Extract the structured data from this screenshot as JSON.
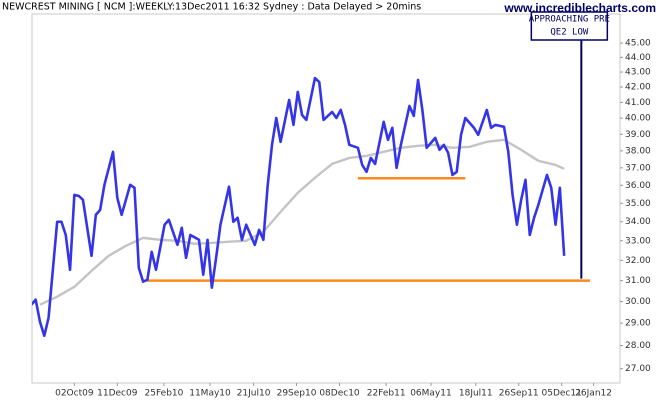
{
  "chart_data": {
    "type": "line",
    "title": "NEWCREST MINING [ NCM ]:WEEKLY:13Dec2011 16:32 Sydney : Data Delayed > 20mins",
    "watermark": "www.incrediblecharts.com",
    "log_scale": true,
    "grid": false,
    "xlim": [
      "2009-07-25",
      "2012-03-09"
    ],
    "xticks": [
      {
        "value": "2009-10-02",
        "label": "02Oct09"
      },
      {
        "value": "2009-12-11",
        "label": "11Dec09"
      },
      {
        "value": "2010-02-25",
        "label": "25Feb10"
      },
      {
        "value": "2010-05-11",
        "label": "11May10"
      },
      {
        "value": "2010-07-21",
        "label": "21Jul10"
      },
      {
        "value": "2010-09-29",
        "label": "29Sep10"
      },
      {
        "value": "2010-12-08",
        "label": "08Dec10"
      },
      {
        "value": "2011-02-22",
        "label": "22Feb11"
      },
      {
        "value": "2011-05-06",
        "label": "06May11"
      },
      {
        "value": "2011-07-18",
        "label": "18Jul11"
      },
      {
        "value": "2011-09-26",
        "label": "26Sep11"
      },
      {
        "value": "2011-12-05",
        "label": "05Dec11"
      },
      {
        "value": "2012-01-26",
        "label": "26Jan12"
      }
    ],
    "ylim": [
      26.4,
      47.1
    ],
    "yticks": [
      {
        "value": 27,
        "label": "27.00"
      },
      {
        "value": 28,
        "label": "28.00"
      },
      {
        "value": 29,
        "label": "29.00"
      },
      {
        "value": 30,
        "label": "30.00"
      },
      {
        "value": 31,
        "label": "31.00"
      },
      {
        "value": 32,
        "label": "32.00"
      },
      {
        "value": 33,
        "label": "33.00"
      },
      {
        "value": 34,
        "label": "34.00"
      },
      {
        "value": 35,
        "label": "35.00"
      },
      {
        "value": 36,
        "label": "36.00"
      },
      {
        "value": 37,
        "label": "37.00"
      },
      {
        "value": 38,
        "label": "38.00"
      },
      {
        "value": 39,
        "label": "39.00"
      },
      {
        "value": 40,
        "label": "40.00"
      },
      {
        "value": 41,
        "label": "41.00"
      },
      {
        "value": 42,
        "label": "42.00"
      },
      {
        "value": 43,
        "label": "43.00"
      },
      {
        "value": 44,
        "label": "44.00"
      },
      {
        "value": 45,
        "label": "45.00"
      }
    ],
    "x": [
      "2009-07-24",
      "2009-07-31",
      "2009-08-07",
      "2009-08-14",
      "2009-08-21",
      "2009-09-04",
      "2009-09-11",
      "2009-09-18",
      "2009-09-25",
      "2009-10-02",
      "2009-10-09",
      "2009-10-16",
      "2009-10-30",
      "2009-11-06",
      "2009-11-13",
      "2009-11-20",
      "2009-12-04",
      "2009-12-11",
      "2009-12-18",
      "2009-12-25",
      "2010-01-01",
      "2010-01-08",
      "2010-01-15",
      "2010-01-22",
      "2010-01-29",
      "2010-02-05",
      "2010-02-12",
      "2010-02-26",
      "2010-03-05",
      "2010-03-19",
      "2010-03-26",
      "2010-04-02",
      "2010-04-09",
      "2010-04-23",
      "2010-04-30",
      "2010-05-07",
      "2010-05-14",
      "2010-05-21",
      "2010-05-28",
      "2010-06-11",
      "2010-06-18",
      "2010-06-25",
      "2010-07-02",
      "2010-07-09",
      "2010-07-23",
      "2010-07-30",
      "2010-08-06",
      "2010-08-13",
      "2010-08-20",
      "2010-08-27",
      "2010-09-03",
      "2010-09-17",
      "2010-09-24",
      "2010-10-01",
      "2010-10-08",
      "2010-10-15",
      "2010-10-29",
      "2010-11-05",
      "2010-11-12",
      "2010-11-26",
      "2010-12-03",
      "2010-12-10",
      "2010-12-17",
      "2010-12-24",
      "2011-01-07",
      "2011-01-14",
      "2011-01-21",
      "2011-01-28",
      "2011-02-04",
      "2011-02-18",
      "2011-02-25",
      "2011-03-04",
      "2011-03-11",
      "2011-03-18",
      "2011-04-01",
      "2011-04-08",
      "2011-04-15",
      "2011-04-22",
      "2011-04-29",
      "2011-05-13",
      "2011-05-20",
      "2011-05-27",
      "2011-06-03",
      "2011-06-10",
      "2011-06-17",
      "2011-06-24",
      "2011-07-01",
      "2011-07-15",
      "2011-07-22",
      "2011-08-05",
      "2011-08-12",
      "2011-08-19",
      "2011-09-02",
      "2011-09-09",
      "2011-09-16",
      "2011-09-23",
      "2011-09-30",
      "2011-10-07",
      "2011-10-14",
      "2011-10-21",
      "2011-10-28",
      "2011-11-11",
      "2011-11-18",
      "2011-11-25",
      "2011-12-02",
      "2011-12-09"
    ],
    "series": [
      {
        "color": "#3535e8",
        "values": [
          29.85,
          30.09,
          29.06,
          28.43,
          29.25,
          34.0,
          34.0,
          33.3,
          31.53,
          35.46,
          35.41,
          35.19,
          32.23,
          34.37,
          34.64,
          36.03,
          37.94,
          35.3,
          34.37,
          35.19,
          36.03,
          35.86,
          31.63,
          30.95,
          31.04,
          32.43,
          31.53,
          33.84,
          34.1,
          32.79,
          33.68,
          32.13,
          33.3,
          33.05,
          31.29,
          33.05,
          30.66,
          32.13,
          33.84,
          35.92,
          34.0,
          34.21,
          33.05,
          33.84,
          32.79,
          33.57,
          33.05,
          36.0,
          38.36,
          40.01,
          38.54,
          41.16,
          39.58,
          41.68,
          40.2,
          39.89,
          42.6,
          42.33,
          39.89,
          40.39,
          40.01,
          40.52,
          39.58,
          38.36,
          38.18,
          37.17,
          36.77,
          37.58,
          37.23,
          39.77,
          38.66,
          39.4,
          37.0,
          38.36,
          40.77,
          40.14,
          42.47,
          40.52,
          38.18,
          38.78,
          38.06,
          38.36,
          37.88,
          36.59,
          36.77,
          38.97,
          40.01,
          39.4,
          38.97,
          40.52,
          39.4,
          39.58,
          39.46,
          37.94,
          35.46,
          33.84,
          35.19,
          36.31,
          33.3,
          34.21,
          34.92,
          36.59,
          35.86,
          33.84,
          35.86,
          32.23
        ]
      },
      {
        "color": "#c4c4c4",
        "x": [
          "2009-08-07",
          "2009-09-04",
          "2009-10-02",
          "2009-10-30",
          "2009-11-27",
          "2009-12-25",
          "2010-01-22",
          "2010-02-19",
          "2010-03-19",
          "2010-04-16",
          "2010-05-14",
          "2010-06-11",
          "2010-07-09",
          "2010-08-06",
          "2010-09-03",
          "2010-10-01",
          "2010-10-29",
          "2010-11-26",
          "2010-12-24",
          "2011-01-21",
          "2011-02-18",
          "2011-03-18",
          "2011-04-15",
          "2011-05-13",
          "2011-06-10",
          "2011-07-08",
          "2011-08-05",
          "2011-09-02",
          "2011-09-30",
          "2011-10-28",
          "2011-11-25",
          "2011-12-09"
        ],
        "values": [
          29.85,
          30.23,
          30.7,
          31.48,
          32.23,
          32.74,
          33.15,
          33.05,
          33.0,
          32.84,
          32.89,
          32.95,
          33.0,
          33.47,
          34.53,
          35.58,
          36.43,
          37.23,
          37.58,
          37.7,
          37.94,
          38.18,
          38.3,
          38.36,
          38.18,
          38.24,
          38.54,
          38.66,
          38.06,
          37.41,
          37.17,
          36.94
        ]
      }
    ],
    "hlines": [
      {
        "x": [
          "2010-01-29",
          "2012-01-20"
        ],
        "y": 31.0,
        "color": "#ff8a1c"
      },
      {
        "x": [
          "2011-01-07",
          "2011-07-01"
        ],
        "y": 36.4,
        "color": "#ff8a1c"
      }
    ],
    "annotations": [
      {
        "text": [
          "APPROACHING PRE",
          "QE2 LOW"
        ],
        "x": "2012-01-06",
        "y": 31.0,
        "color": "#000066"
      }
    ]
  }
}
